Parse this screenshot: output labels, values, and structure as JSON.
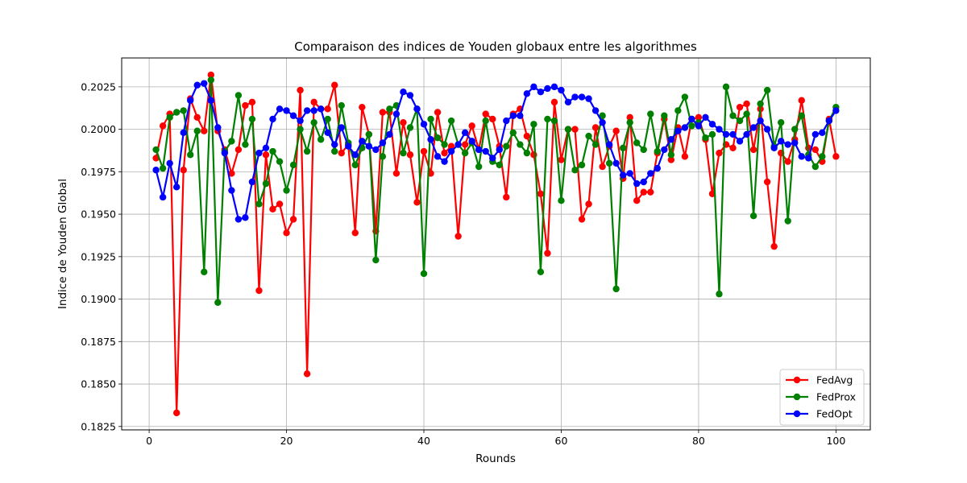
{
  "chart_data": {
    "type": "line",
    "title": "Comparaison des indices de Youden globaux entre les algorithmes",
    "xlabel": "Rounds",
    "ylabel": "Indice de Youden Global",
    "xlim": [
      -4,
      105
    ],
    "ylim": [
      0.1823,
      0.2042
    ],
    "xticks": [
      0,
      20,
      40,
      60,
      80,
      100
    ],
    "yticks": [
      0.1825,
      0.185,
      0.1875,
      0.19,
      0.1925,
      0.195,
      0.1975,
      0.2,
      0.2025
    ],
    "ytick_labels": [
      "0.1825",
      "0.1850",
      "0.1875",
      "0.1900",
      "0.1925",
      "0.1950",
      "0.1975",
      "0.2000",
      "0.2025"
    ],
    "grid": true,
    "legend_position": "bottom-right",
    "x": [
      1,
      2,
      3,
      4,
      5,
      6,
      7,
      8,
      9,
      10,
      11,
      12,
      13,
      14,
      15,
      16,
      17,
      18,
      19,
      20,
      21,
      22,
      23,
      24,
      25,
      26,
      27,
      28,
      29,
      30,
      31,
      32,
      33,
      34,
      35,
      36,
      37,
      38,
      39,
      40,
      41,
      42,
      43,
      44,
      45,
      46,
      47,
      48,
      49,
      50,
      51,
      52,
      53,
      54,
      55,
      56,
      57,
      58,
      59,
      60,
      61,
      62,
      63,
      64,
      65,
      66,
      67,
      68,
      69,
      70,
      71,
      72,
      73,
      74,
      75,
      76,
      77,
      78,
      79,
      80,
      81,
      82,
      83,
      84,
      85,
      86,
      87,
      88,
      89,
      90,
      91,
      92,
      93,
      94,
      95,
      96,
      97,
      98,
      99,
      100
    ],
    "series": [
      {
        "name": "FedAvg",
        "color": "#ff0000",
        "values": [
          0.1983,
          0.2002,
          0.2009,
          0.1833,
          0.1976,
          0.2018,
          0.2007,
          0.1999,
          0.2032,
          0.1999,
          0.1988,
          0.1974,
          0.1988,
          0.2014,
          0.2016,
          0.1905,
          0.1985,
          0.1953,
          0.1956,
          0.1939,
          0.1947,
          0.2023,
          0.1856,
          0.2016,
          0.2012,
          0.2012,
          0.2026,
          0.1986,
          0.1991,
          0.1939,
          0.2013,
          0.1997,
          0.194,
          0.201,
          0.201,
          0.1974,
          0.2004,
          0.1985,
          0.1957,
          0.1987,
          0.1974,
          0.201,
          0.1986,
          0.199,
          0.1937,
          0.1991,
          0.2002,
          0.1988,
          0.2009,
          0.2006,
          0.199,
          0.196,
          0.2009,
          0.2012,
          0.1996,
          0.1985,
          0.1962,
          0.1927,
          0.2016,
          0.1982,
          0.2,
          0.2,
          0.1947,
          0.1956,
          0.2001,
          0.1978,
          0.199,
          0.1999,
          0.1971,
          0.2007,
          0.1958,
          0.1963,
          0.1963,
          0.1986,
          0.2006,
          0.1982,
          0.2001,
          0.1984,
          0.2006,
          0.2007,
          0.1994,
          0.1962,
          0.1986,
          0.1991,
          0.1989,
          0.2013,
          0.2015,
          0.1988,
          0.2012,
          0.1969,
          0.1931,
          0.1986,
          0.1981,
          0.1994,
          0.2017,
          0.1989,
          0.1988,
          0.1981,
          0.2006,
          0.1984
        ]
      },
      {
        "name": "FedProx",
        "color": "#008000",
        "values": [
          0.1988,
          0.1977,
          0.2007,
          0.201,
          0.2011,
          0.1985,
          0.1999,
          0.1916,
          0.2029,
          0.1898,
          0.1987,
          0.1993,
          0.202,
          0.1991,
          0.2006,
          0.1956,
          0.1968,
          0.1987,
          0.1981,
          0.1964,
          0.1979,
          0.2,
          0.1987,
          0.2004,
          0.1994,
          0.2006,
          0.1987,
          0.2014,
          0.1992,
          0.1979,
          0.1989,
          0.1997,
          0.1923,
          0.1984,
          0.2012,
          0.2014,
          0.1986,
          0.2001,
          0.2012,
          0.1915,
          0.2006,
          0.1995,
          0.1991,
          0.2005,
          0.1991,
          0.1986,
          0.1992,
          0.1978,
          0.2005,
          0.1981,
          0.1979,
          0.199,
          0.1998,
          0.1991,
          0.1986,
          0.2003,
          0.1916,
          0.2006,
          0.2005,
          0.1958,
          0.2,
          0.1976,
          0.1979,
          0.1996,
          0.1991,
          0.2008,
          0.198,
          0.1906,
          0.1989,
          0.2004,
          0.1992,
          0.1988,
          0.2009,
          0.1987,
          0.2008,
          0.1985,
          0.2011,
          0.2019,
          0.2002,
          0.2004,
          0.1995,
          0.1997,
          0.1903,
          0.2025,
          0.2008,
          0.2005,
          0.2009,
          0.1949,
          0.2015,
          0.2023,
          0.199,
          0.2004,
          0.1946,
          0.2,
          0.2008,
          0.1985,
          0.1978,
          0.1984,
          0.2005,
          0.2013
        ]
      },
      {
        "name": "FedOpt",
        "color": "#0000ff",
        "values": [
          0.1976,
          0.196,
          0.198,
          0.1966,
          0.1998,
          0.2017,
          0.2026,
          0.2027,
          0.2017,
          0.2001,
          0.1986,
          0.1964,
          0.1947,
          0.1948,
          0.1969,
          0.1986,
          0.1989,
          0.2006,
          0.2012,
          0.2011,
          0.2008,
          0.2005,
          0.2011,
          0.2011,
          0.2012,
          0.1998,
          0.1991,
          0.2001,
          0.199,
          0.1985,
          0.1993,
          0.199,
          0.1988,
          0.1992,
          0.1997,
          0.2009,
          0.2022,
          0.202,
          0.2012,
          0.2003,
          0.1994,
          0.1984,
          0.1981,
          0.1987,
          0.1991,
          0.1998,
          0.1993,
          0.1988,
          0.1987,
          0.1983,
          0.1988,
          0.2005,
          0.2008,
          0.2008,
          0.2021,
          0.2025,
          0.2022,
          0.2024,
          0.2025,
          0.2023,
          0.2016,
          0.2019,
          0.2019,
          0.2018,
          0.2011,
          0.2004,
          0.1991,
          0.198,
          0.1973,
          0.1974,
          0.1968,
          0.1969,
          0.1974,
          0.1977,
          0.1988,
          0.1994,
          0.1999,
          0.2001,
          0.2006,
          0.2002,
          0.2007,
          0.2003,
          0.2,
          0.1997,
          0.1997,
          0.1993,
          0.1997,
          0.2001,
          0.2005,
          0.2,
          0.1989,
          0.1993,
          0.1991,
          0.1992,
          0.1984,
          0.1983,
          0.1997,
          0.1998,
          0.2005,
          0.2011
        ]
      }
    ]
  }
}
